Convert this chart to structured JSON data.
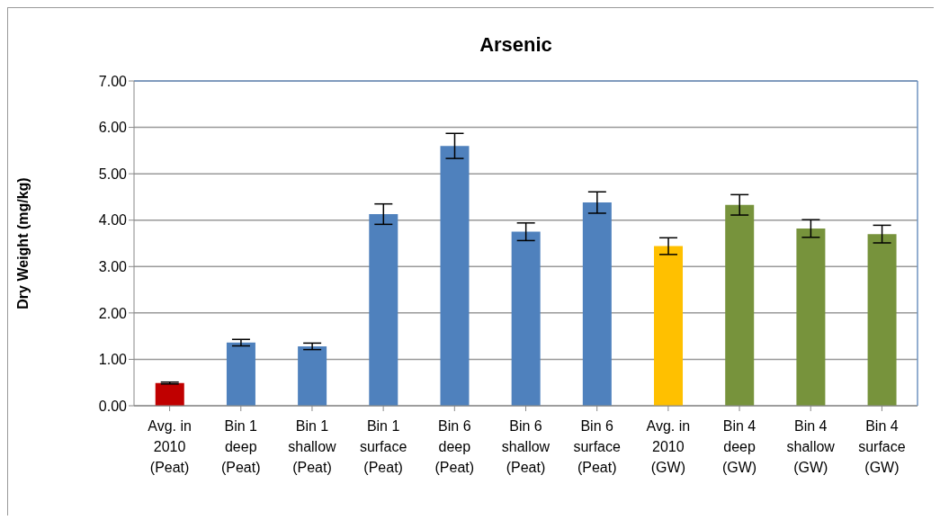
{
  "chart_data": {
    "type": "bar",
    "title": "Arsenic",
    "ylabel": "Dry Weight (mg/kg)",
    "categories": [
      "Avg. in 2010 (Peat)",
      "Bin 1 deep (Peat)",
      "Bin 1 shallow (Peat)",
      "Bin 1 surface (Peat)",
      "Bin 6 deep (Peat)",
      "Bin 6 shallow (Peat)",
      "Bin 6 surface (Peat)",
      "Avg. in 2010 (GW)",
      "Bin 4 deep (GW)",
      "Bin 4 shallow (GW)",
      "Bin 4 surface (GW)"
    ],
    "values": [
      0.49,
      1.36,
      1.28,
      4.13,
      5.6,
      3.75,
      4.38,
      3.44,
      4.33,
      3.82,
      3.7
    ],
    "errors": [
      0.02,
      0.07,
      0.07,
      0.22,
      0.27,
      0.19,
      0.23,
      0.18,
      0.22,
      0.19,
      0.19
    ],
    "colors": [
      "#c00000",
      "#4f81bd",
      "#4f81bd",
      "#4f81bd",
      "#4f81bd",
      "#4f81bd",
      "#4f81bd",
      "#ffc000",
      "#77933c",
      "#77933c",
      "#77933c"
    ],
    "ylim": [
      0,
      7
    ],
    "yticks": [
      {
        "value": 0,
        "label": "0.00"
      },
      {
        "value": 1,
        "label": "1.00"
      },
      {
        "value": 2,
        "label": "2.00"
      },
      {
        "value": 3,
        "label": "3.00"
      },
      {
        "value": 4,
        "label": "4.00"
      },
      {
        "value": 5,
        "label": "5.00"
      },
      {
        "value": 6,
        "label": "6.00"
      },
      {
        "value": 7,
        "label": "7.00"
      }
    ],
    "grid": "y",
    "legend": false
  }
}
